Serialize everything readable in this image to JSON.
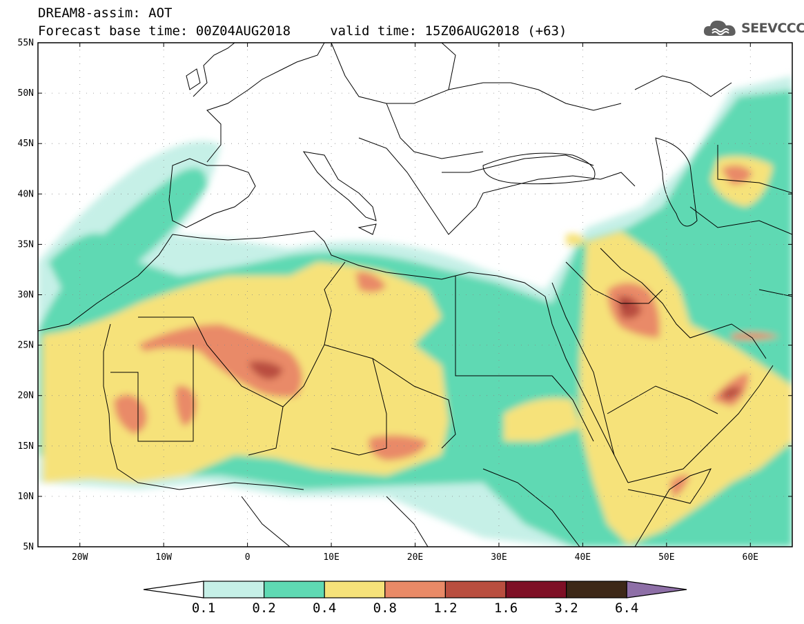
{
  "header": {
    "title_line1": "DREAM8-assim: AOT",
    "title_line2": "Forecast base time: 00Z04AUG2018     valid time: 15Z06AUG2018 (+63)"
  },
  "logo": {
    "text": "SEEVCCC",
    "icon": "cloud-icon"
  },
  "map": {
    "lon_range": [
      -25,
      65
    ],
    "lat_range": [
      5,
      55
    ],
    "lat_ticks": [
      "5N",
      "10N",
      "15N",
      "20N",
      "25N",
      "30N",
      "35N",
      "40N",
      "45N",
      "50N",
      "55N"
    ],
    "lon_ticks": [
      "20W",
      "10W",
      "0",
      "10E",
      "20E",
      "30E",
      "40E",
      "50E",
      "60E"
    ]
  },
  "colorbar": {
    "labels": [
      "0.1",
      "0.2",
      "0.4",
      "0.8",
      "1.2",
      "1.6",
      "3.2",
      "6.4"
    ],
    "colors": [
      "#ffffff",
      "#c6f0e7",
      "#5fd9b3",
      "#f6e27a",
      "#e98a67",
      "#b94e3f",
      "#7e0f25",
      "#3d2817",
      "#8e6fa7"
    ]
  }
}
